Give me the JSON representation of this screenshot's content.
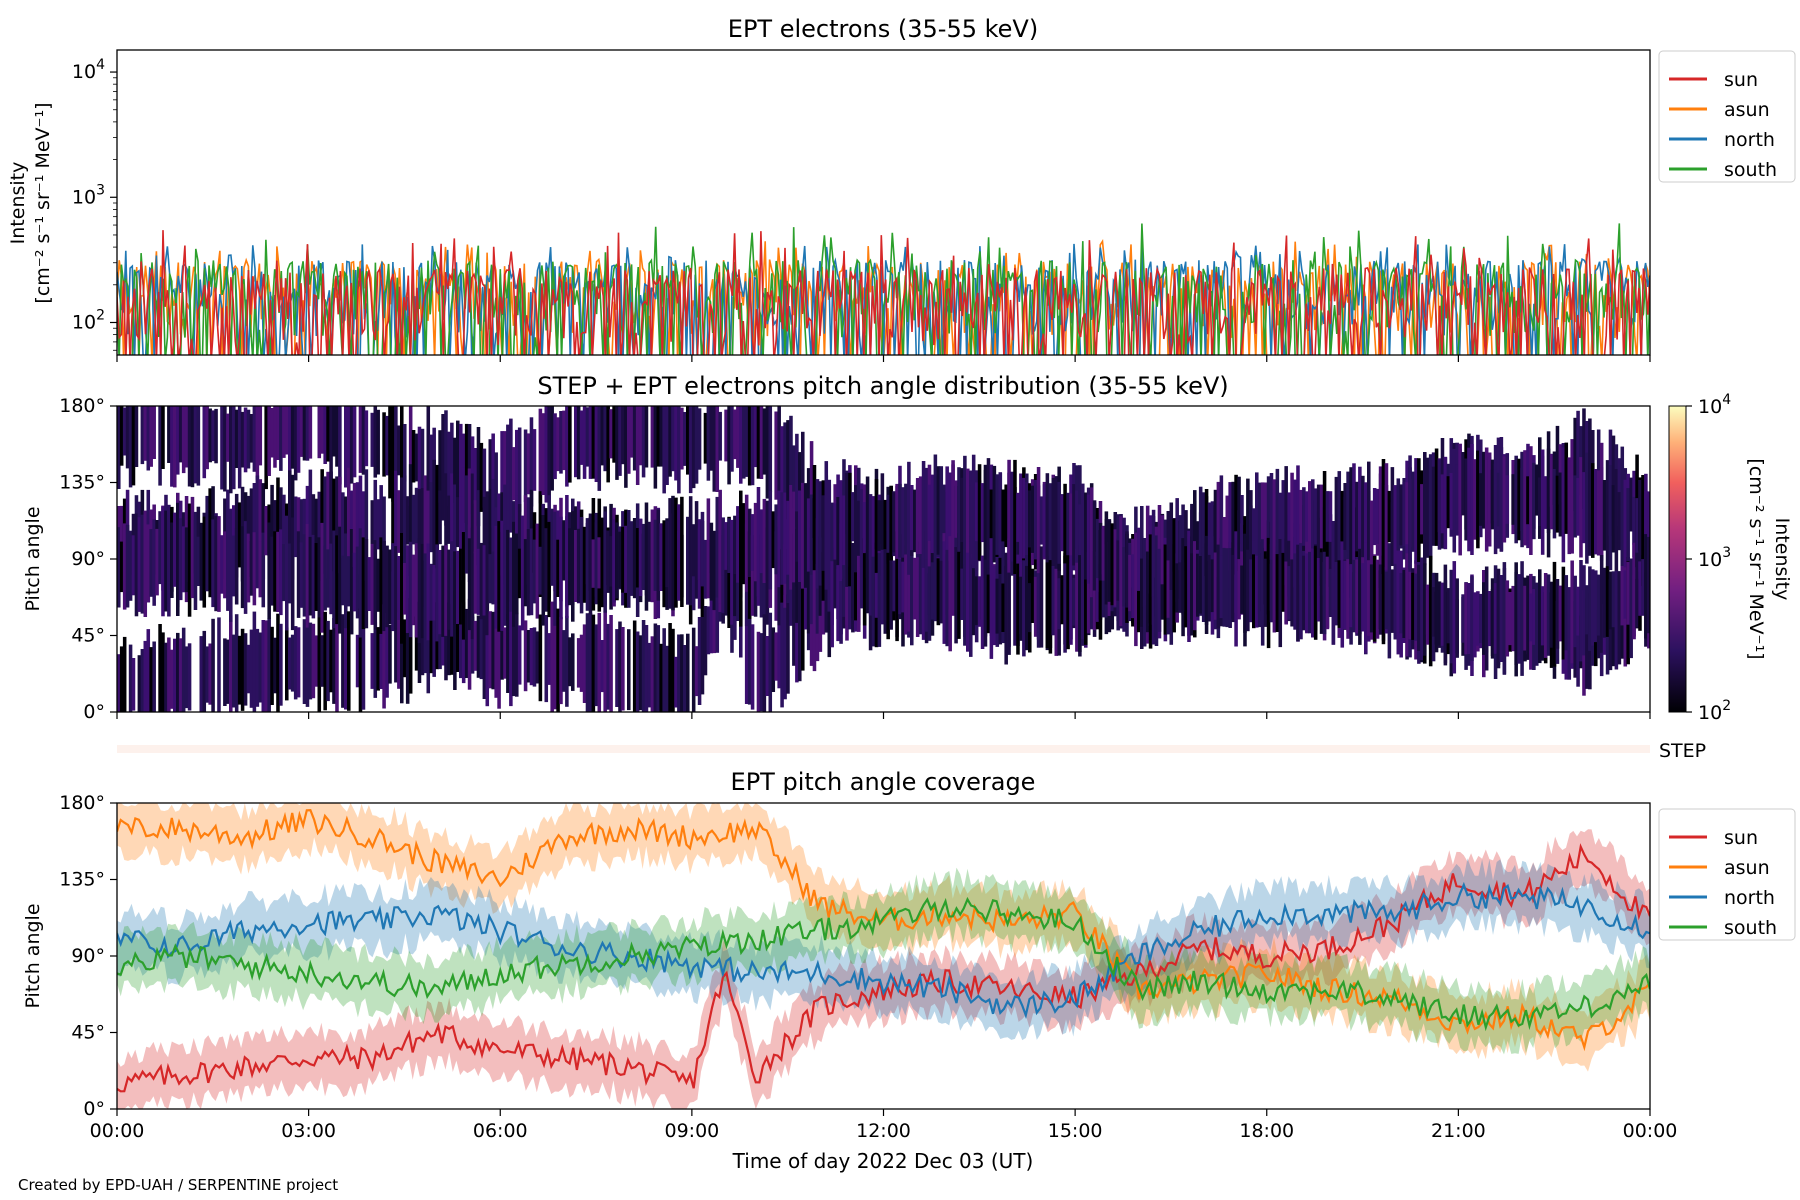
{
  "figure": {
    "xlabel": "Time of day 2022 Dec 03 (UT)",
    "credit": "Created by EPD-UAH / SERPENTINE project",
    "x_ticks": [
      "00:00",
      "03:00",
      "06:00",
      "09:00",
      "12:00",
      "15:00",
      "18:00",
      "21:00",
      "00:00"
    ]
  },
  "chart_data": [
    {
      "type": "line",
      "title": "EPT electrons (35-55 keV)",
      "ylabel_line1": "Intensity",
      "ylabel_line2": "[cm⁻² s⁻¹ sr⁻¹ MeV⁻¹]",
      "yscale": "log",
      "ylim": [
        55,
        15000
      ],
      "y_ticks": [
        {
          "base": "10",
          "exp": "2",
          "value": 100
        },
        {
          "base": "10",
          "exp": "3",
          "value": 1000
        },
        {
          "base": "10",
          "exp": "4",
          "value": 10000
        }
      ],
      "xlim_hours": [
        0,
        24
      ],
      "legend_position": "outside upper right",
      "series": [
        {
          "name": "sun",
          "color": "#d62728",
          "typical": 130,
          "min": 55,
          "max": 550
        },
        {
          "name": "asun",
          "color": "#ff7f0e",
          "typical": 150,
          "min": 55,
          "max": 450
        },
        {
          "name": "north",
          "color": "#1f77b4",
          "typical": 150,
          "min": 55,
          "max": 430
        },
        {
          "name": "south",
          "color": "#2ca02c",
          "typical": 150,
          "min": 55,
          "max": 640
        }
      ]
    },
    {
      "type": "heatmap",
      "title": "STEP + EPT electrons pitch angle distribution (35-55 keV)",
      "ylabel": "Pitch angle",
      "ylim": [
        0,
        180
      ],
      "y_ticks": [
        "0°",
        "45°",
        "90°",
        "135°",
        "180°"
      ],
      "colorbar": {
        "label_line1": "Intensity",
        "label_line2": "[cm⁻² s⁻¹ sr⁻¹ MeV⁻¹]",
        "scale": "log",
        "range": [
          100,
          10000
        ],
        "ticks": [
          {
            "base": "10",
            "exp": "2"
          },
          {
            "base": "10",
            "exp": "3"
          },
          {
            "base": "10",
            "exp": "4"
          }
        ]
      }
    },
    {
      "type": "heatmap",
      "label": "STEP"
    },
    {
      "type": "line",
      "title": "EPT pitch angle coverage",
      "ylabel": "Pitch angle",
      "ylim": [
        0,
        180
      ],
      "y_ticks": [
        "0°",
        "45°",
        "90°",
        "135°",
        "180°"
      ],
      "xlim_hours": [
        0,
        24
      ],
      "legend_position": "outside upper right",
      "series": [
        {
          "name": "sun",
          "color": "#d62728",
          "hours": [
            0,
            1,
            2,
            3,
            4,
            5,
            6,
            7,
            8,
            9,
            9.5,
            10,
            11,
            12,
            13,
            14,
            15,
            16,
            17,
            18,
            19,
            20,
            21,
            22,
            23,
            24
          ],
          "values": [
            15,
            20,
            25,
            30,
            30,
            45,
            35,
            30,
            25,
            15,
            80,
            20,
            60,
            70,
            75,
            70,
            65,
            80,
            95,
            90,
            95,
            110,
            135,
            125,
            150,
            110
          ]
        },
        {
          "name": "asun",
          "color": "#ff7f0e",
          "hours": [
            0,
            1,
            2,
            3,
            4,
            5,
            6,
            7,
            8,
            9,
            10,
            11,
            12,
            13,
            14,
            15,
            16,
            17,
            18,
            19,
            20,
            21,
            22,
            23,
            24
          ],
          "values": [
            165,
            165,
            160,
            170,
            160,
            145,
            135,
            160,
            165,
            160,
            165,
            120,
            110,
            115,
            110,
            115,
            70,
            75,
            80,
            70,
            65,
            50,
            55,
            40,
            70
          ]
        },
        {
          "name": "north",
          "color": "#1f77b4",
          "hours": [
            0,
            1,
            2,
            3,
            4,
            5,
            6,
            7,
            8,
            9,
            10,
            11,
            12,
            13,
            14,
            15,
            16,
            17,
            18,
            19,
            20,
            21,
            22,
            23,
            24
          ],
          "values": [
            100,
            95,
            105,
            110,
            110,
            115,
            105,
            95,
            90,
            85,
            80,
            80,
            75,
            70,
            60,
            65,
            90,
            105,
            115,
            115,
            115,
            125,
            125,
            120,
            105
          ]
        },
        {
          "name": "south",
          "color": "#2ca02c",
          "hours": [
            0,
            1,
            2,
            3,
            4,
            5,
            6,
            7,
            8,
            9,
            10,
            11,
            12,
            13,
            14,
            15,
            16,
            17,
            18,
            19,
            20,
            21,
            22,
            23,
            24
          ],
          "values": [
            85,
            90,
            85,
            80,
            75,
            70,
            80,
            85,
            90,
            95,
            100,
            105,
            110,
            120,
            115,
            110,
            70,
            75,
            70,
            70,
            65,
            55,
            55,
            60,
            75
          ]
        }
      ]
    }
  ]
}
